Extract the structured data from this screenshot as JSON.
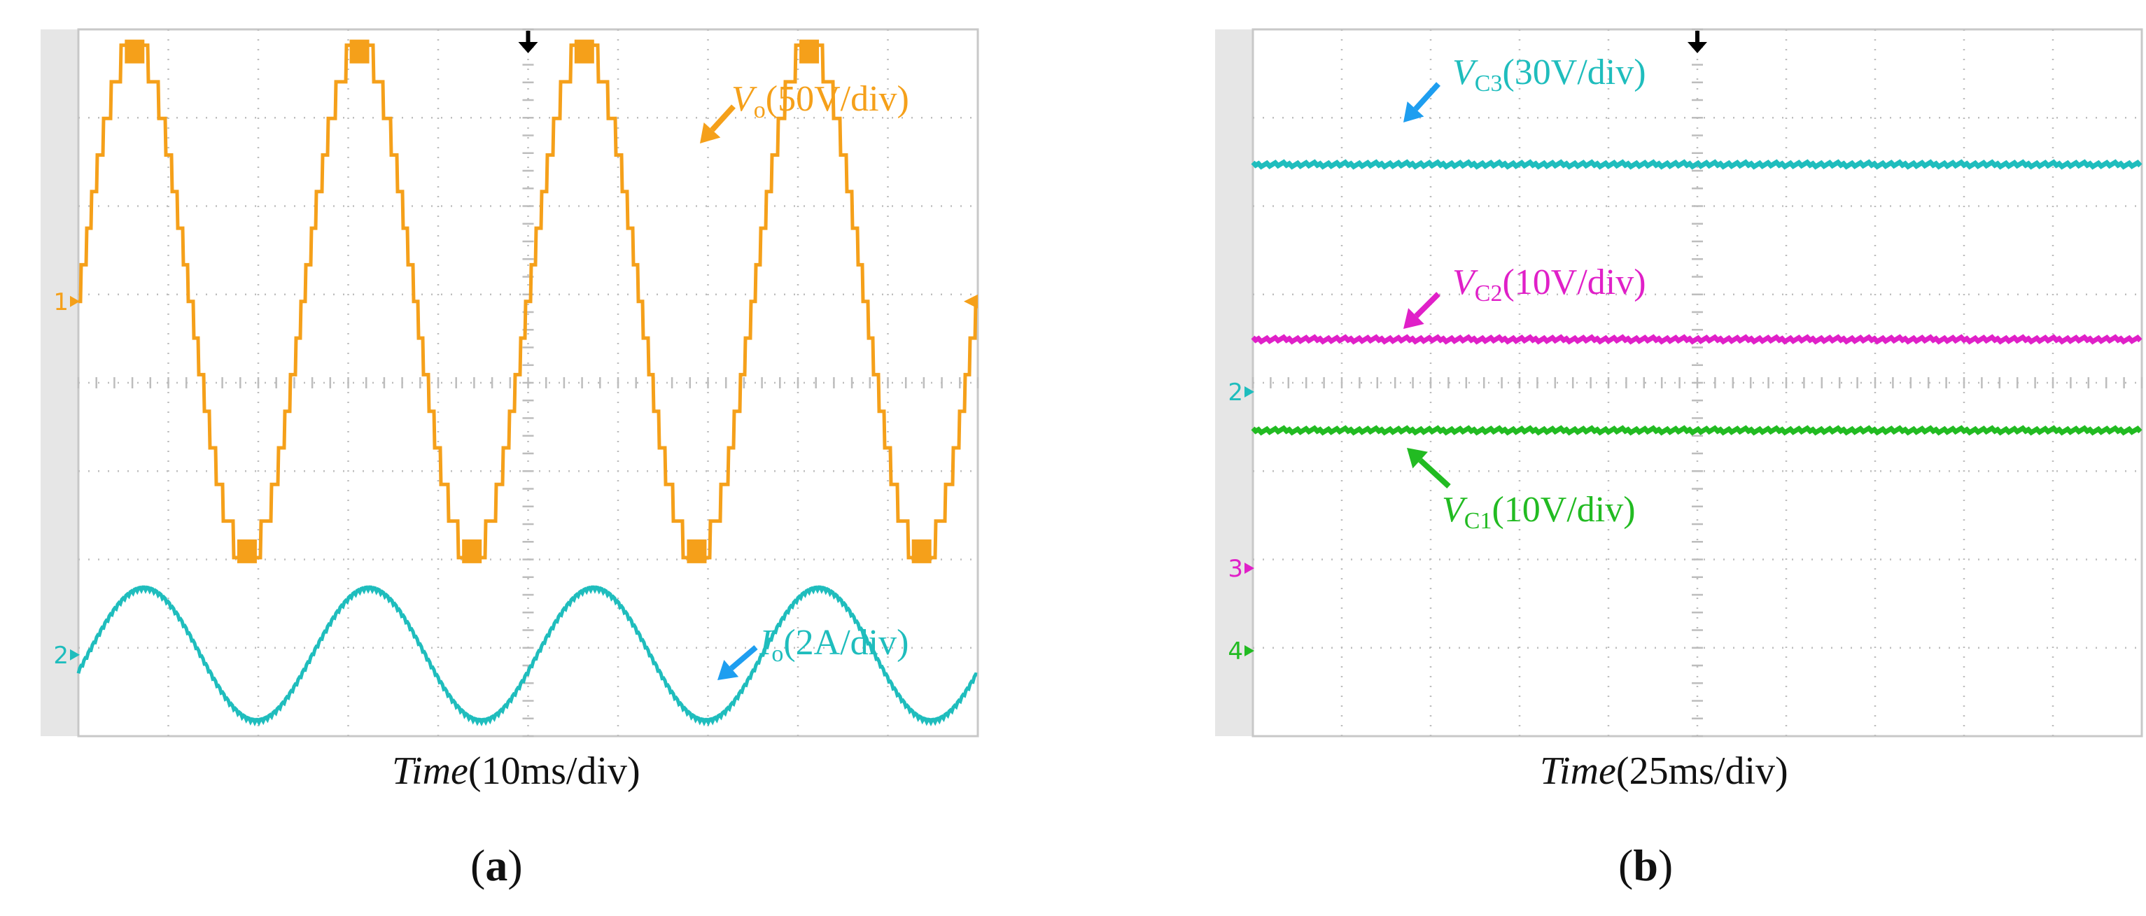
{
  "figure": {
    "panels": [
      {
        "id": "a",
        "label_letter": "a",
        "xlabel_italic": "Time",
        "xlabel_rest": "(10ms/div)"
      },
      {
        "id": "b",
        "label_letter": "b",
        "xlabel_italic": "Time",
        "xlabel_rest": "(25ms/div)"
      }
    ]
  },
  "chart_data": [
    {
      "type": "line",
      "title": "",
      "xlabel": "Time(10ms/div)",
      "ylabel": "",
      "x_divisions": 10,
      "y_divisions": 8,
      "grid": true,
      "series": [
        {
          "name": "Vo(50V/div)",
          "label_main": "V",
          "label_sub": "o",
          "label_scale": "(50V/div)",
          "color": "#F5A01A",
          "channel": "1",
          "waveform": "multilevel staircase sine",
          "frequency_hz": 50,
          "amplitude_div": 2.9,
          "levels": 7,
          "offset_div": 0,
          "phase_deg": 0
        },
        {
          "name": "Io(2A/div)",
          "label_main": "I",
          "label_sub": "o",
          "label_scale": "(2A/div)",
          "color": "#1FBDBD",
          "channel": "2",
          "waveform": "sine",
          "frequency_hz": 50,
          "amplitude_div": 0.75,
          "offset_div": 0,
          "phase_deg": -15
        }
      ],
      "channel_markers": [
        "1",
        "2"
      ]
    },
    {
      "type": "line",
      "title": "",
      "xlabel": "Time(25ms/div)",
      "ylabel": "",
      "x_divisions": 10,
      "y_divisions": 8,
      "grid": true,
      "series": [
        {
          "name": "VC3(30V/div)",
          "label_main": "V",
          "label_sub": "C3",
          "label_scale": "(30V/div)",
          "color": "#1FBDBD",
          "channel": "2",
          "waveform": "dc",
          "level_div": 2.6
        },
        {
          "name": "VC2(10V/div)",
          "label_main": "V",
          "label_sub": "C2",
          "label_scale": "(10V/div)",
          "color": "#E020C8",
          "channel": "3",
          "waveform": "dc",
          "level_div": 2.0
        },
        {
          "name": "VC1(10V/div)",
          "label_main": "V",
          "label_sub": "C1",
          "label_scale": "(10V/div)",
          "color": "#22BB22",
          "channel": "4",
          "waveform": "dc",
          "level_div": 2.5
        }
      ],
      "channel_markers": [
        {
          "label": "2",
          "color": "#1FBDBD"
        },
        {
          "label": "3",
          "color": "#E020C8"
        },
        {
          "label": "4",
          "color": "#22BB22"
        }
      ]
    }
  ],
  "arrow_color": "#1E9EF0"
}
